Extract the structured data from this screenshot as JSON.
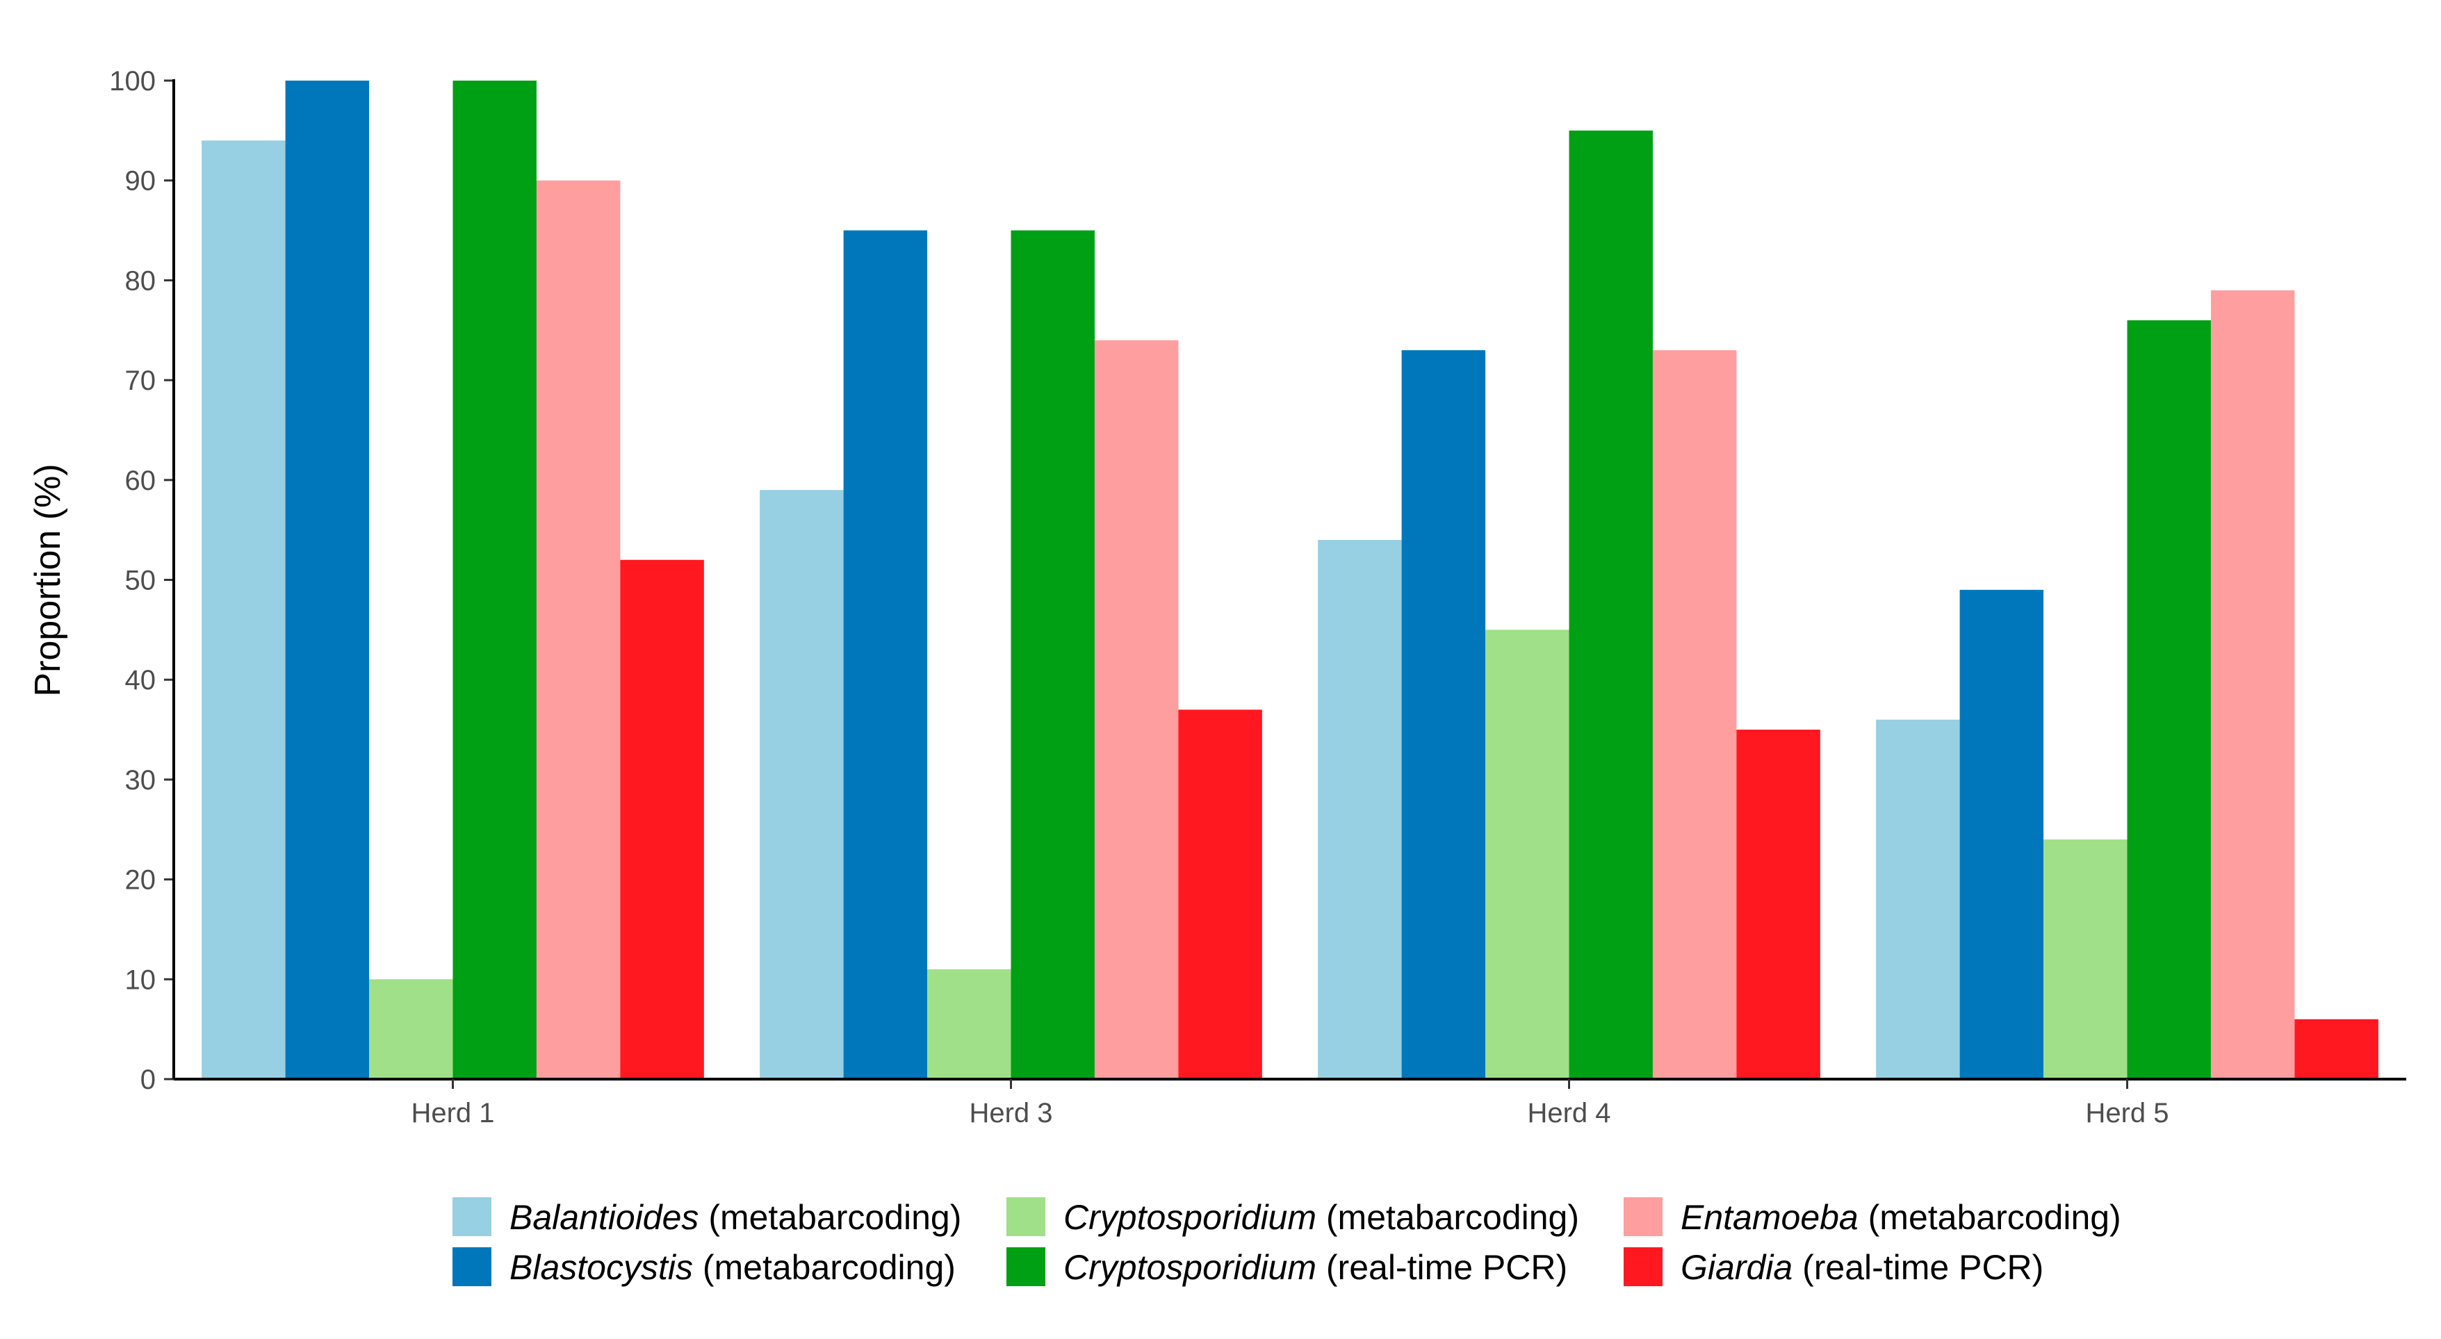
{
  "chart_data": {
    "type": "bar",
    "title": "",
    "xlabel": "",
    "ylabel": "Proportion (%)",
    "ylim": [
      0,
      100
    ],
    "yticks": [
      0,
      10,
      20,
      30,
      40,
      50,
      60,
      70,
      80,
      90,
      100
    ],
    "grid": false,
    "legend_position": "bottom",
    "categories": [
      "Herd 1",
      "Herd 3",
      "Herd 4",
      "Herd 5"
    ],
    "series": [
      {
        "name": "Balantioides",
        "method": "(metabarcoding)",
        "color": "#97cfe3",
        "values": [
          94,
          59,
          54,
          36
        ]
      },
      {
        "name": "Blastocystis",
        "method": "(metabarcoding)",
        "color": "#0077bb",
        "values": [
          100,
          85,
          73,
          49
        ]
      },
      {
        "name": "Cryptosporidium",
        "method": "(metabarcoding)",
        "color": "#a0e088",
        "values": [
          10,
          11,
          45,
          24
        ]
      },
      {
        "name": "Cryptosporidium",
        "method": "(real-time PCR)",
        "color": "#00a014",
        "values": [
          100,
          85,
          95,
          76
        ]
      },
      {
        "name": "Entamoeba",
        "method": "(metabarcoding)",
        "color": "#ff9e9e",
        "values": [
          90,
          74,
          73,
          79
        ]
      },
      {
        "name": "Giardia",
        "method": "(real-time PCR)",
        "color": "#ff1820",
        "values": [
          52,
          37,
          35,
          6
        ]
      }
    ]
  }
}
